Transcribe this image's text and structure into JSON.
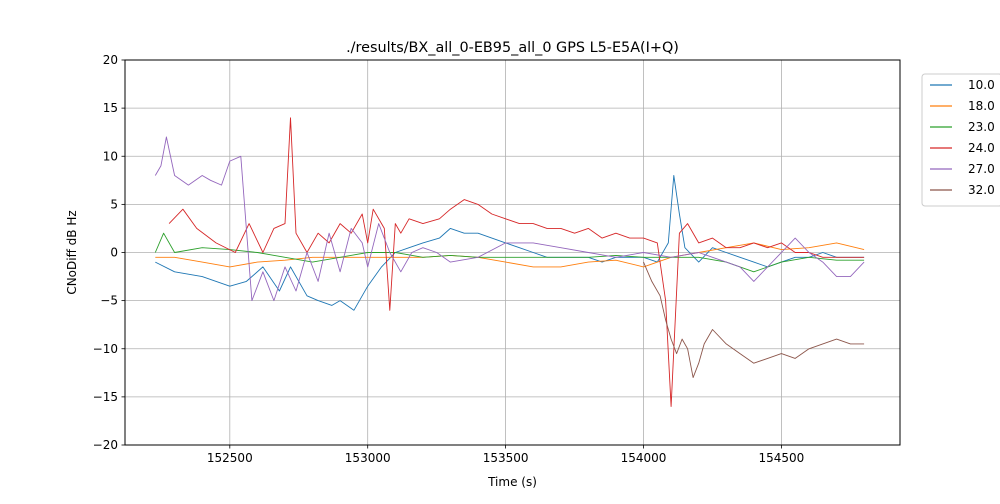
{
  "chart_data": {
    "type": "line",
    "title": "./results/BX_all_0-EB95_all_0 GPS L5-E5A(I+Q)",
    "xlabel": "Time (s)",
    "ylabel": "CNoDiff dB Hz",
    "xlim": [
      152120,
      154930
    ],
    "ylim": [
      -20,
      20
    ],
    "xticks": [
      152500,
      153000,
      153500,
      154000,
      154500
    ],
    "yticks": [
      -20,
      -15,
      -10,
      -5,
      0,
      5,
      10,
      15,
      20
    ],
    "grid": true,
    "legend_position": "outside-right-top",
    "series": [
      {
        "name": "10.0",
        "color": "#1f77b4",
        "x": [
          152230,
          152300,
          152400,
          152500,
          152560,
          152620,
          152680,
          152720,
          152780,
          152820,
          152870,
          152900,
          152950,
          153000,
          153050,
          153100,
          153150,
          153200,
          153260,
          153300,
          153350,
          153400,
          153450,
          153500,
          153550,
          153600,
          153650,
          153700,
          153750,
          153800,
          153850,
          153900,
          153950,
          154000,
          154050,
          154090,
          154110,
          154130,
          154150,
          154200,
          154250,
          154300,
          154350,
          154400,
          154450,
          154500,
          154550,
          154600,
          154650,
          154700,
          154800
        ],
        "y": [
          -1.0,
          -2.0,
          -2.5,
          -3.5,
          -3.0,
          -1.5,
          -4.0,
          -1.5,
          -4.5,
          -5.0,
          -5.5,
          -5.0,
          -6.0,
          -3.5,
          -1.5,
          0.0,
          0.5,
          1.0,
          1.5,
          2.5,
          2.0,
          2.0,
          1.5,
          1.0,
          0.5,
          0.0,
          -0.5,
          -0.5,
          -0.5,
          -0.5,
          -1.0,
          -0.5,
          -0.5,
          -0.5,
          -1.0,
          1.0,
          8.0,
          4.0,
          0.5,
          -1.0,
          0.5,
          0.0,
          -0.5,
          -1.0,
          -1.5,
          -1.0,
          -0.5,
          -0.5,
          0.0,
          -0.5,
          -0.5
        ]
      },
      {
        "name": "18.0",
        "color": "#ff7f0e",
        "x": [
          152230,
          152300,
          152400,
          152500,
          152600,
          152700,
          152800,
          152900,
          153000,
          153100,
          153200,
          153300,
          153400,
          153500,
          153600,
          153700,
          153800,
          153900,
          154000,
          154100,
          154200,
          154300,
          154400,
          154500,
          154600,
          154700,
          154800
        ],
        "y": [
          -0.5,
          -0.5,
          -1.0,
          -1.5,
          -1.0,
          -0.8,
          -0.5,
          -0.5,
          -0.5,
          -0.5,
          -0.5,
          -0.3,
          -0.5,
          -1.0,
          -1.5,
          -1.5,
          -1.0,
          -0.8,
          -1.5,
          -0.5,
          0.0,
          0.5,
          1.0,
          0.3,
          0.5,
          1.0,
          0.3
        ]
      },
      {
        "name": "23.0",
        "color": "#2ca02c",
        "x": [
          152230,
          152260,
          152300,
          152400,
          152500,
          152600,
          152700,
          152800,
          152900,
          153000,
          153100,
          153200,
          153300,
          153400,
          153500,
          153600,
          153700,
          153800,
          153900,
          154000,
          154100,
          154200,
          154300,
          154400,
          154500,
          154600,
          154700,
          154800
        ],
        "y": [
          0.0,
          2.0,
          0.0,
          0.5,
          0.3,
          0.0,
          -0.5,
          -1.0,
          -0.5,
          0.0,
          0.0,
          -0.5,
          -0.3,
          -0.5,
          -0.5,
          -0.5,
          -0.5,
          -0.5,
          -0.3,
          -0.5,
          -0.5,
          -0.5,
          -1.0,
          -2.0,
          -1.0,
          -0.5,
          -0.8,
          -0.8
        ]
      },
      {
        "name": "24.0",
        "color": "#d62728",
        "x": [
          152280,
          152330,
          152380,
          152450,
          152520,
          152570,
          152620,
          152660,
          152700,
          152720,
          152740,
          152780,
          152820,
          152860,
          152900,
          152940,
          152980,
          153000,
          153020,
          153060,
          153080,
          153100,
          153120,
          153150,
          153200,
          153260,
          153300,
          153350,
          153400,
          153450,
          153500,
          153550,
          153600,
          153650,
          153700,
          153750,
          153800,
          153850,
          153900,
          153950,
          154000,
          154050,
          154080,
          154100,
          154130,
          154160,
          154200,
          154250,
          154300,
          154350,
          154400,
          154450,
          154500,
          154550,
          154600,
          154650,
          154700,
          154800
        ],
        "y": [
          3.0,
          4.5,
          2.5,
          1.0,
          0.0,
          3.0,
          0.0,
          2.5,
          3.0,
          14.0,
          2.0,
          0.0,
          2.0,
          1.0,
          3.0,
          2.0,
          4.0,
          1.0,
          4.5,
          2.5,
          -6.0,
          3.0,
          2.0,
          3.5,
          3.0,
          3.5,
          4.5,
          5.5,
          5.0,
          4.0,
          3.5,
          3.0,
          3.0,
          2.5,
          2.5,
          2.0,
          2.5,
          1.5,
          2.0,
          1.5,
          1.5,
          1.0,
          -5.0,
          -16.0,
          2.0,
          3.0,
          1.0,
          1.5,
          0.5,
          0.5,
          1.0,
          0.5,
          1.0,
          0.0,
          0.0,
          -0.5,
          -0.5,
          -0.5
        ]
      },
      {
        "name": "27.0",
        "color": "#9467bd",
        "x": [
          152230,
          152250,
          152270,
          152300,
          152350,
          152400,
          152430,
          152470,
          152500,
          152540,
          152580,
          152620,
          152660,
          152700,
          152740,
          152780,
          152820,
          152860,
          152900,
          152940,
          152980,
          153000,
          153040,
          153080,
          153120,
          153160,
          153200,
          153250,
          153300,
          153400,
          153500,
          153600,
          153700,
          153800,
          153900,
          154000,
          154100,
          154200,
          154300,
          154350,
          154400,
          154450,
          154500,
          154550,
          154600,
          154650,
          154700,
          154750,
          154800
        ],
        "y": [
          8.0,
          9.0,
          12.0,
          8.0,
          7.0,
          8.0,
          7.5,
          7.0,
          9.5,
          10.0,
          -5.0,
          -2.0,
          -5.0,
          -1.5,
          -4.0,
          0.0,
          -3.0,
          2.0,
          -2.0,
          2.5,
          1.0,
          -1.5,
          3.0,
          0.0,
          -2.0,
          0.0,
          0.5,
          0.0,
          -1.0,
          -0.5,
          1.0,
          1.0,
          0.5,
          0.0,
          -0.5,
          0.0,
          -0.5,
          0.0,
          -1.0,
          -1.5,
          -3.0,
          -1.5,
          0.0,
          1.5,
          0.0,
          -1.0,
          -2.5,
          -2.5,
          -1.0
        ]
      },
      {
        "name": "32.0",
        "color": "#8c564b",
        "x": [
          154000,
          154030,
          154060,
          154080,
          154100,
          154120,
          154140,
          154160,
          154180,
          154200,
          154220,
          154250,
          154300,
          154350,
          154400,
          154450,
          154500,
          154550,
          154600,
          154650,
          154700,
          154750,
          154800
        ],
        "y": [
          -1.0,
          -3.0,
          -4.5,
          -7.0,
          -9.0,
          -10.5,
          -9.0,
          -10.0,
          -13.0,
          -11.5,
          -9.5,
          -8.0,
          -9.5,
          -10.5,
          -11.5,
          -11.0,
          -10.5,
          -11.0,
          -10.0,
          -9.5,
          -9.0,
          -9.5,
          -9.5
        ]
      }
    ]
  }
}
